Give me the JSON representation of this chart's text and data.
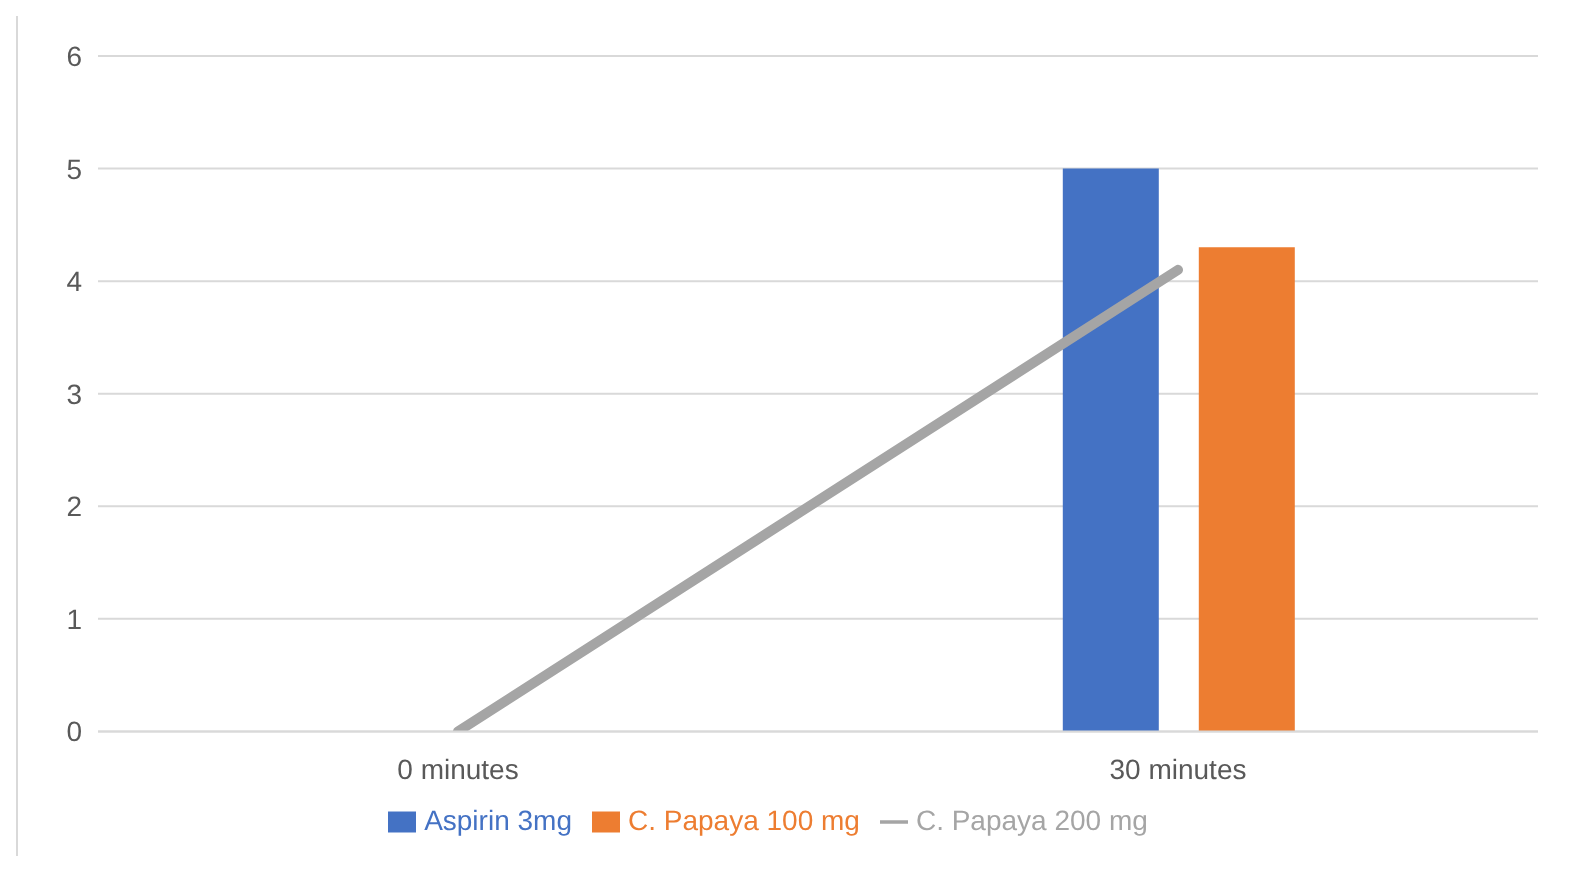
{
  "chart_data": {
    "type": "bar",
    "categories": [
      "0 minutes",
      "30 minutes"
    ],
    "series": [
      {
        "name": "Aspirin 3mg",
        "color": "#4472c4",
        "values": [
          0,
          5
        ]
      },
      {
        "name": "C. Papaya 100 mg",
        "color": "#ed7d31",
        "values": [
          0,
          4.3
        ]
      },
      {
        "name": "C. Papaya 200 mg",
        "color": "#a5a5a5",
        "type": "line",
        "values": [
          0,
          4.1
        ]
      }
    ],
    "ylim": [
      0,
      6
    ],
    "yticks": [
      0,
      1,
      2,
      3,
      4,
      5,
      6
    ],
    "grid": "y",
    "legend": "bottom",
    "marker": "none"
  }
}
